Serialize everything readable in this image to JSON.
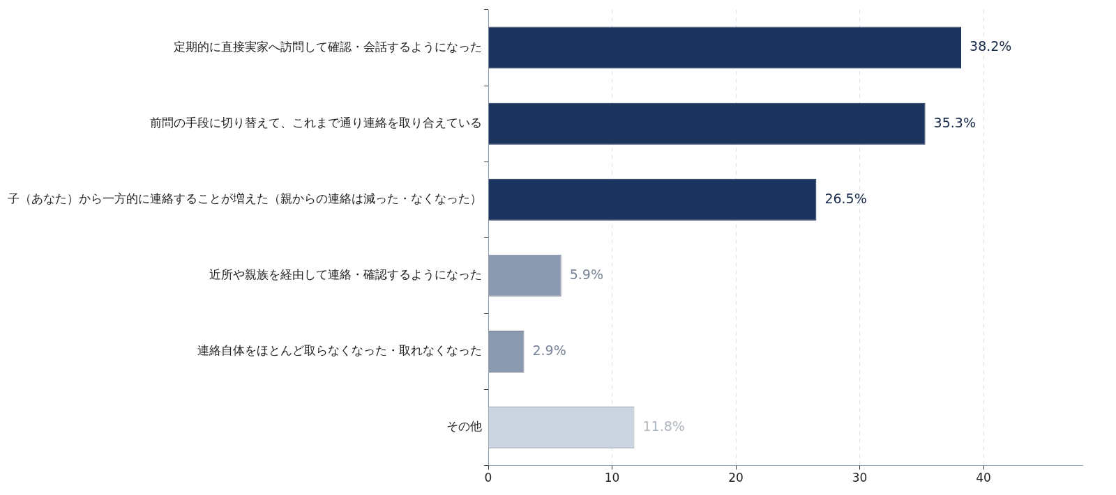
{
  "chart_data": {
    "type": "bar",
    "orientation": "horizontal",
    "categories": [
      "定期的に直接実家へ訪問して確認・会話するようになった",
      "前問の手段に切り替えて、これまで通り連絡を取り合えている",
      "子（あなた）から一方的に連絡することが増えた（親からの連絡は減った・なくなった）",
      "近所や親族を経由して連絡・確認するようになった",
      "連絡自体をほとんど取らなくなった・取れなくなった",
      "その他"
    ],
    "values": [
      38.2,
      35.3,
      26.5,
      5.9,
      2.9,
      11.8
    ],
    "colors": [
      "#1c355e",
      "#1c355e",
      "#1c355e",
      "#8c9ab0",
      "#8c9ab0",
      "#cbd5e1"
    ],
    "value_labels": [
      "38.2%",
      "35.3%",
      "26.5%",
      "5.9%",
      "2.9%",
      "11.8%"
    ],
    "xlim": [
      0,
      48
    ],
    "xticks": [
      0,
      10,
      20,
      30,
      40
    ],
    "grid": "x",
    "legend": false
  }
}
